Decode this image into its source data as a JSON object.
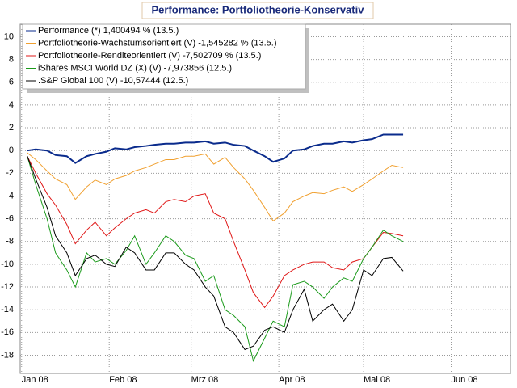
{
  "chart_data": {
    "type": "line",
    "title": "Performance: Portfoliotheorie-Konservativ",
    "x": [
      2,
      5,
      9,
      12,
      16,
      19,
      23,
      26,
      30,
      33,
      37,
      40,
      44,
      47,
      51,
      54,
      58,
      61,
      65,
      68,
      72,
      75,
      79,
      82,
      86,
      89,
      93,
      96,
      100,
      103,
      107,
      110,
      114,
      117,
      121,
      124,
      128,
      131,
      135
    ],
    "series": [
      {
        "name": "Performance (*) 1,400494 % (13.5.)",
        "color": "#0a2b8c",
        "width": 2,
        "values": [
          0,
          0.1,
          0,
          -0.4,
          -0.5,
          -1.1,
          -0.5,
          -0.3,
          -0.1,
          0.2,
          0.1,
          0.3,
          0.4,
          0.5,
          0.6,
          0.6,
          0.7,
          0.7,
          0.8,
          0.6,
          0.7,
          0.5,
          0.4,
          0,
          -0.5,
          -1,
          -0.7,
          0,
          0.1,
          0.4,
          0.6,
          0.6,
          0.8,
          0.7,
          0.9,
          1,
          1.4,
          1.4,
          1.4
        ]
      },
      {
        "name": "Portfoliotheorie-Wachstumsorientiert (V) -1,545282 % (13.5.)",
        "color": "#f0a030",
        "width": 1,
        "values": [
          -0.2,
          -0.8,
          -1.8,
          -2.5,
          -3,
          -4.3,
          -3.2,
          -2.6,
          -3,
          -2.5,
          -2.2,
          -1.8,
          -1.5,
          -1.2,
          -0.8,
          -0.8,
          -0.5,
          -0.5,
          -0.3,
          -1.2,
          -0.6,
          -1.5,
          -2.5,
          -3.5,
          -5,
          -6.2,
          -5.5,
          -4.5,
          -4,
          -3.7,
          -3.8,
          -3.5,
          -3.2,
          -3.6,
          -3,
          -2.5,
          -1.8,
          -1.3,
          -1.5
        ]
      },
      {
        "name": "Portfoliotheorie-Renditeorientiert (V) -7,502709 % (13.5.)",
        "color": "#e01818",
        "width": 1,
        "values": [
          -0.5,
          -2,
          -3.8,
          -4.8,
          -6.5,
          -8.2,
          -7,
          -6.3,
          -7.5,
          -6.8,
          -6,
          -5.5,
          -5.2,
          -5.5,
          -4.5,
          -4.3,
          -4.5,
          -4,
          -3.8,
          -5.5,
          -6,
          -8,
          -10.5,
          -12.5,
          -13.8,
          -12.8,
          -11,
          -10.5,
          -10,
          -9.8,
          -9.8,
          -10.3,
          -10.5,
          -9.8,
          -9.5,
          -8.5,
          -7.2,
          -7.3,
          -7.5
        ]
      },
      {
        "name": "iShares MSCI World DZ (X) (V) -7,973856 (12.5.)",
        "color": "#1a9a1a",
        "width": 1,
        "values": [
          -0.5,
          -3,
          -6,
          -9,
          -10.5,
          -12,
          -9,
          -9.8,
          -9.5,
          -10,
          -8.8,
          -7.5,
          -10,
          -9,
          -7.5,
          -8,
          -9.2,
          -9.5,
          -11.5,
          -11,
          -14,
          -14.5,
          -15.5,
          -18.5,
          -16.5,
          -15,
          -15.5,
          -11.8,
          -11.5,
          -12,
          -13,
          -12,
          -11.2,
          -11.5,
          -9.5,
          -8.5,
          -7,
          -7.5,
          -8
        ]
      },
      {
        "name": ".S&P Global 100 (V) -10,57444 (12.5.)",
        "color": "#000000",
        "width": 1,
        "values": [
          -0.5,
          -2.5,
          -5,
          -7.5,
          -9,
          -11,
          -9.5,
          -9.2,
          -10,
          -10.2,
          -8.5,
          -9,
          -10.5,
          -10.5,
          -9,
          -9,
          -10,
          -10.5,
          -12,
          -12.8,
          -15.5,
          -16,
          -17.5,
          -17.2,
          -15.8,
          -15.5,
          -16,
          -14,
          -12.2,
          -15,
          -14,
          -13.5,
          -15,
          -14,
          -10.5,
          -11,
          -9.5,
          -9.4,
          -10.6
        ]
      }
    ],
    "xlim": [
      -0.5,
      173
    ],
    "xticks": [
      {
        "value": 0,
        "label": "Jan 08"
      },
      {
        "value": 31,
        "label": "Feb 08"
      },
      {
        "value": 60,
        "label": "Mrz 08"
      },
      {
        "value": 91,
        "label": "Apr 08"
      },
      {
        "value": 121,
        "label": "Mai 08"
      },
      {
        "value": 152,
        "label": "Jun 08"
      }
    ],
    "ylim": [
      -19.6,
      11.1
    ],
    "yticks": [
      -18,
      -16,
      -14,
      -12,
      -10,
      -8,
      -6,
      -4,
      -2,
      0,
      2,
      4,
      6,
      8,
      10
    ],
    "grid": true
  }
}
